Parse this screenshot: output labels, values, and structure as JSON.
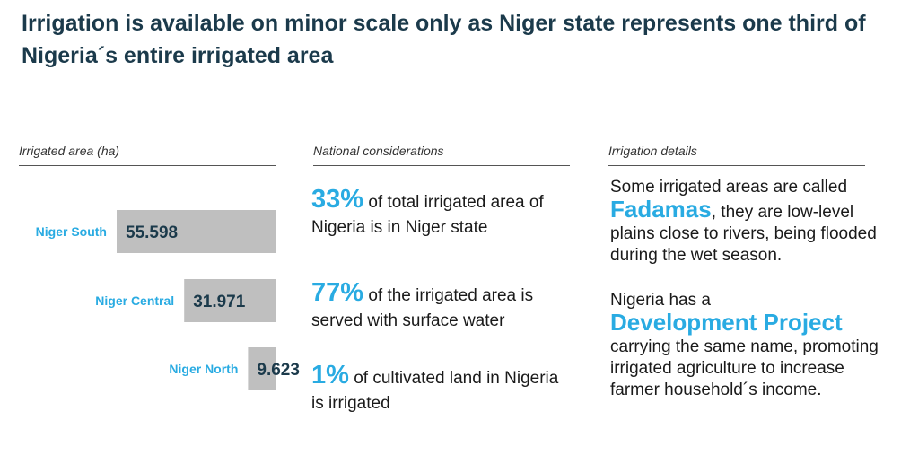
{
  "title": "Irrigation is available on minor scale only as Niger state represents one third of Nigeria´s entire irrigated area",
  "columns": {
    "chart_header": "Irrigated area (ha)",
    "national_header": "National considerations",
    "details_header": "Irrigation details"
  },
  "chart_data": {
    "type": "bar",
    "orientation": "horizontal",
    "title": "Irrigated area (ha)",
    "categories": [
      "Niger South",
      "Niger Central",
      "Niger North"
    ],
    "values": [
      55.598,
      31.971,
      9.623
    ],
    "value_labels": [
      "55.598",
      "31.971",
      "9.623"
    ],
    "bar_color": "#bfbfbf",
    "label_color": "#29abe2",
    "grid": false
  },
  "national": [
    {
      "pct": "33%",
      "text": " of total irrigated area of Nigeria is in Niger state"
    },
    {
      "pct": "77%",
      "text": " of the irrigated area is served with surface water"
    },
    {
      "pct": "1%",
      "text": " of cultivated land in Nigeria is irrigated"
    }
  ],
  "details": {
    "p1_pre": "Some irrigated areas are called",
    "p1_hl": "Fadamas",
    "p1_post": ", they are low-level plains close to rivers, being flooded during the wet season.",
    "p2_pre": "Nigeria has a",
    "p2_hl": "Development Project",
    "p2_post": "carrying the same name, promoting irrigated agriculture to increase farmer household´s income."
  },
  "colors": {
    "accent": "#29abe2",
    "title": "#1b3a4b"
  }
}
